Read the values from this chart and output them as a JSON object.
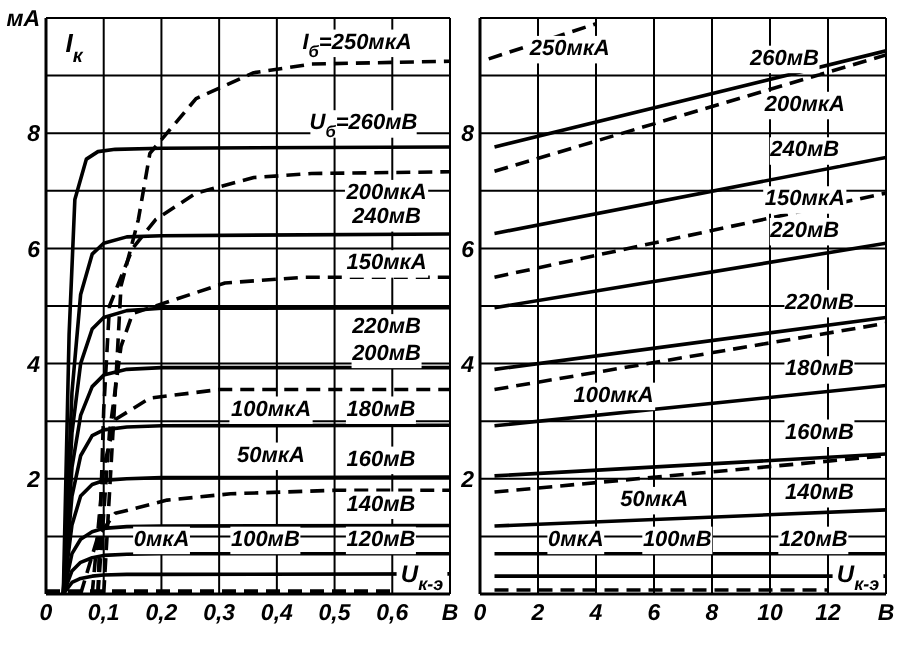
{
  "chart_data": [
    {
      "type": "line",
      "ylabel": "I$_{к}$",
      "xlabel": "U$_{к-э}$",
      "xlim": [
        0,
        0.7
      ],
      "xticks": [
        0,
        {
          "value": 0.1,
          "label": "0,1"
        },
        {
          "value": 0.2,
          "label": "0,2"
        },
        {
          "value": 0.3,
          "label": "0,3"
        },
        {
          "value": 0.4,
          "label": "0,4"
        },
        {
          "value": 0.5,
          "label": "0,5"
        },
        {
          "value": 0.6,
          "label": "0,6"
        },
        {
          "value": 0.7,
          "label": "В"
        }
      ],
      "ylim": [
        0,
        10
      ],
      "yticks": [
        {
          "value": 0,
          "label": null
        },
        {
          "value": 1,
          "label": null
        },
        2,
        {
          "value": 3,
          "label": null
        },
        4,
        {
          "value": 5,
          "label": null
        },
        6,
        {
          "value": 7,
          "label": null
        },
        8,
        {
          "value": 9,
          "label": null
        },
        {
          "value": 10,
          "label": "мА"
        }
      ],
      "grid": true,
      "legend": false,
      "marker": "none",
      "series": [
        {
          "color": "#000000",
          "line_style": "solid",
          "x": [
            0.03,
            0.04,
            0.05,
            0.07,
            0.09,
            0.12,
            0.2,
            0.7
          ],
          "values": [
            0,
            4.5,
            6.85,
            7.55,
            7.68,
            7.72,
            7.74,
            7.76
          ]
        },
        {
          "color": "#000000",
          "line_style": "solid",
          "x": [
            0.03,
            0.045,
            0.06,
            0.08,
            0.1,
            0.14,
            0.2,
            0.7
          ],
          "values": [
            0,
            3.5,
            5.2,
            5.9,
            6.09,
            6.2,
            6.22,
            6.25
          ]
        },
        {
          "color": "#000000",
          "line_style": "solid",
          "x": [
            0.03,
            0.045,
            0.06,
            0.08,
            0.1,
            0.14,
            0.2,
            0.7
          ],
          "values": [
            0,
            2.8,
            4,
            4.6,
            4.8,
            4.92,
            4.96,
            4.97
          ]
        },
        {
          "color": "#000000",
          "line_style": "solid",
          "x": [
            0.03,
            0.045,
            0.06,
            0.08,
            0.1,
            0.14,
            0.2,
            0.7
          ],
          "values": [
            0,
            2.2,
            3.1,
            3.6,
            3.8,
            3.9,
            3.93,
            3.93
          ]
        },
        {
          "color": "#000000",
          "line_style": "solid",
          "x": [
            0.03,
            0.045,
            0.06,
            0.08,
            0.1,
            0.14,
            0.2,
            0.7
          ],
          "values": [
            0,
            1.7,
            2.4,
            2.75,
            2.85,
            2.9,
            2.92,
            2.93
          ]
        },
        {
          "color": "#000000",
          "line_style": "solid",
          "x": [
            0.03,
            0.045,
            0.06,
            0.08,
            0.1,
            0.14,
            0.2,
            0.7
          ],
          "values": [
            0,
            1.2,
            1.7,
            1.9,
            1.97,
            2,
            2.02,
            2.03
          ]
        },
        {
          "color": "#000000",
          "line_style": "solid",
          "x": [
            0.03,
            0.045,
            0.06,
            0.08,
            0.1,
            0.14,
            0.2,
            0.7
          ],
          "values": [
            0,
            0.7,
            0.95,
            1.08,
            1.14,
            1.17,
            1.18,
            1.19
          ]
        },
        {
          "color": "#000000",
          "line_style": "solid",
          "x": [
            0.03,
            0.045,
            0.06,
            0.08,
            0.1,
            0.14,
            0.2,
            0.7
          ],
          "values": [
            0,
            0.4,
            0.55,
            0.63,
            0.67,
            0.69,
            0.7,
            0.7
          ]
        },
        {
          "color": "#000000",
          "line_style": "solid",
          "x": [
            0.03,
            0.045,
            0.06,
            0.08,
            0.1,
            0.14,
            0.2,
            0.7
          ],
          "values": [
            0,
            0.2,
            0.27,
            0.31,
            0.33,
            0.34,
            0.34,
            0.35
          ]
        },
        {
          "color": "#000000",
          "line_style": "dashed",
          "x": [
            0.1,
            0.12,
            0.13,
            0.16,
            0.18,
            0.26,
            0.36,
            0.46,
            0.7
          ],
          "values": [
            0,
            3.5,
            5.35,
            6.5,
            7.65,
            8.6,
            9.05,
            9.2,
            9.25
          ]
        },
        {
          "color": "#000000",
          "line_style": "dashed",
          "x": [
            0.09,
            0.1,
            0.11,
            0.15,
            0.19,
            0.26,
            0.36,
            0.46,
            0.7
          ],
          "values": [
            0,
            3.2,
            5,
            6,
            6.5,
            6.96,
            7.23,
            7.3,
            7.33
          ]
        },
        {
          "color": "#000000",
          "line_style": "dashed",
          "x": [
            0.09,
            0.11,
            0.13,
            0.15,
            0.22,
            0.31,
            0.45,
            0.7
          ],
          "values": [
            0,
            2.8,
            4.3,
            4.87,
            5.1,
            5.4,
            5.5,
            5.5
          ]
        },
        {
          "color": "#000000",
          "line_style": "dashed",
          "x": [
            0.08,
            0.1,
            0.12,
            0.18,
            0.3,
            0.45,
            0.7
          ],
          "values": [
            0,
            2.2,
            3.03,
            3.4,
            3.55,
            3.55,
            3.55
          ]
        },
        {
          "color": "#000000",
          "line_style": "dashed",
          "x": [
            0.06,
            0.09,
            0.12,
            0.21,
            0.32,
            0.5,
            0.7
          ],
          "values": [
            0,
            1,
            1.4,
            1.63,
            1.74,
            1.8,
            1.8
          ]
        },
        {
          "color": "#000000",
          "line_style": "dashed",
          "x": [
            0,
            0.6
          ],
          "values": [
            0.05,
            0.05
          ]
        }
      ],
      "annotations": [
        "I$_{б}$=250мкА",
        "U$_{б}$=260мВ",
        "200мкА",
        "240мВ",
        "150мкА",
        "220мВ",
        "200мВ",
        "100мкА",
        "180мВ",
        "50мкА",
        "160мВ",
        "140мВ",
        "0мкА",
        "100мВ",
        "120мВ"
      ]
    },
    {
      "type": "line",
      "xlabel": "U$_{к-э}$",
      "xlim": [
        0,
        14
      ],
      "xticks": [
        0,
        2,
        4,
        6,
        8,
        10,
        12,
        {
          "value": 14,
          "label": "В"
        }
      ],
      "ylim": [
        0,
        10
      ],
      "yticks": [
        {
          "value": 0,
          "label": null
        },
        {
          "value": 1,
          "label": null
        },
        2,
        {
          "value": 3,
          "label": null
        },
        4,
        {
          "value": 5,
          "label": null
        },
        6,
        {
          "value": 7,
          "label": null
        },
        8,
        {
          "value": 9,
          "label": null
        },
        {
          "value": 10,
          "label": null
        }
      ],
      "grid": true,
      "legend": false,
      "marker": "none",
      "series": [
        {
          "color": "#000000",
          "line_style": "dashed",
          "x": [
            0.3,
            4
          ],
          "values": [
            9.29,
            9.9
          ]
        },
        {
          "color": "#000000",
          "line_style": "solid",
          "x": [
            0.5,
            14
          ],
          "values": [
            7.76,
            9.43
          ]
        },
        {
          "color": "#000000",
          "line_style": "dashed",
          "x": [
            0.5,
            14
          ],
          "values": [
            7.34,
            9.36
          ]
        },
        {
          "color": "#000000",
          "line_style": "solid",
          "x": [
            0.5,
            14
          ],
          "values": [
            6.26,
            7.58
          ]
        },
        {
          "color": "#000000",
          "line_style": "dashed",
          "x": [
            0.5,
            14
          ],
          "values": [
            5.5,
            6.96
          ]
        },
        {
          "color": "#000000",
          "line_style": "solid",
          "x": [
            0.5,
            14
          ],
          "values": [
            4.97,
            6.09
          ]
        },
        {
          "color": "#000000",
          "line_style": "solid",
          "x": [
            0.5,
            14
          ],
          "values": [
            3.9,
            4.8
          ]
        },
        {
          "color": "#000000",
          "line_style": "dashed",
          "x": [
            0.5,
            14
          ],
          "values": [
            3.55,
            4.7
          ]
        },
        {
          "color": "#000000",
          "line_style": "solid",
          "x": [
            0.5,
            14
          ],
          "values": [
            2.92,
            3.62
          ]
        },
        {
          "color": "#000000",
          "line_style": "solid",
          "x": [
            0.5,
            14
          ],
          "values": [
            2.05,
            2.43
          ]
        },
        {
          "color": "#000000",
          "line_style": "dashed",
          "x": [
            0.5,
            14
          ],
          "values": [
            1.77,
            2.4
          ]
        },
        {
          "color": "#000000",
          "line_style": "solid",
          "x": [
            0.5,
            14
          ],
          "values": [
            1.18,
            1.46
          ]
        },
        {
          "color": "#000000",
          "line_style": "solid",
          "x": [
            0.5,
            14
          ],
          "values": [
            0.7,
            0.7
          ]
        },
        {
          "color": "#000000",
          "line_style": "solid",
          "x": [
            0.5,
            14
          ],
          "values": [
            0.31,
            0.31
          ]
        },
        {
          "color": "#000000",
          "line_style": "dashed",
          "x": [
            0.5,
            12
          ],
          "values": [
            0.07,
            0.07
          ]
        }
      ],
      "annotations": [
        "250мкА",
        "260мВ",
        "200мкА",
        "240мВ",
        "150мкА",
        "220мВ",
        "220мВ",
        "100мкА",
        "180мВ",
        "160мВ",
        "50мкА",
        "140мВ",
        "0мкА",
        "100мВ",
        "120мВ"
      ]
    }
  ]
}
